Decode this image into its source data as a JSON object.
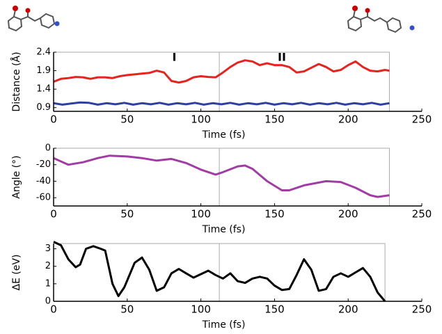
{
  "chart_data": [
    {
      "type": "line",
      "ylabel": "Distance (Å)",
      "xlabel": "Time (fs)",
      "xlim": [
        0,
        250
      ],
      "xticks": [
        0,
        50,
        100,
        150,
        200,
        250
      ],
      "ylim": [
        0.8,
        2.4
      ],
      "yticks": [
        0.9,
        1.4,
        1.9,
        2.4
      ],
      "vline": 112.5,
      "annotations": [
        {
          "text": "I",
          "x": 82,
          "y": 2.25
        },
        {
          "text": "II",
          "x": 155,
          "y": 2.25
        }
      ],
      "series": [
        {
          "color": "#e8231e",
          "x": [
            0,
            5,
            10,
            15,
            20,
            25,
            30,
            35,
            40,
            45,
            50,
            55,
            60,
            65,
            70,
            75,
            80,
            85,
            90,
            95,
            100,
            105,
            110,
            115,
            120,
            125,
            130,
            135,
            140,
            145,
            150,
            155,
            160,
            165,
            170,
            175,
            180,
            185,
            190,
            195,
            200,
            205,
            210,
            215,
            220,
            225,
            228
          ],
          "values": [
            1.6,
            1.68,
            1.7,
            1.73,
            1.72,
            1.68,
            1.72,
            1.72,
            1.7,
            1.75,
            1.78,
            1.8,
            1.82,
            1.84,
            1.9,
            1.85,
            1.62,
            1.58,
            1.62,
            1.72,
            1.75,
            1.73,
            1.72,
            1.85,
            2.0,
            2.12,
            2.18,
            2.15,
            2.05,
            2.1,
            2.05,
            2.05,
            2.0,
            1.85,
            1.88,
            1.98,
            2.08,
            2.0,
            1.88,
            1.92,
            2.05,
            2.15,
            2.0,
            1.9,
            1.88,
            1.92,
            1.9
          ]
        },
        {
          "color": "#2d3fa0",
          "x": [
            0,
            6,
            12,
            18,
            24,
            30,
            36,
            42,
            48,
            54,
            60,
            66,
            72,
            78,
            84,
            90,
            96,
            102,
            108,
            114,
            120,
            126,
            132,
            138,
            144,
            150,
            156,
            162,
            168,
            174,
            180,
            186,
            192,
            198,
            204,
            210,
            216,
            222,
            228
          ],
          "values": [
            1.02,
            0.98,
            1.01,
            1.04,
            1.03,
            0.98,
            1.02,
            0.99,
            1.03,
            0.98,
            1.02,
            0.99,
            1.03,
            0.98,
            1.02,
            0.99,
            1.03,
            0.98,
            1.02,
            0.99,
            1.03,
            0.98,
            1.02,
            0.99,
            1.03,
            0.98,
            1.02,
            0.99,
            1.03,
            0.98,
            1.02,
            0.99,
            1.03,
            0.98,
            1.02,
            0.99,
            1.03,
            0.98,
            1.02
          ]
        }
      ]
    },
    {
      "type": "line",
      "ylabel": "Angle (°)",
      "xlabel": "Time (fs)",
      "xlim": [
        0,
        250
      ],
      "xticks": [
        0,
        50,
        100,
        150,
        200,
        250
      ],
      "ylim": [
        -70,
        0
      ],
      "yticks": [
        0,
        -20,
        -40,
        -60
      ],
      "vline": 112.5,
      "series": [
        {
          "color": "#a23ca5",
          "x": [
            0,
            10,
            20,
            30,
            38,
            50,
            60,
            70,
            80,
            90,
            100,
            110,
            115,
            125,
            130,
            135,
            145,
            155,
            160,
            170,
            185,
            195,
            205,
            215,
            220,
            228
          ],
          "values": [
            -12,
            -20,
            -17,
            -12,
            -9,
            -10,
            -12,
            -15,
            -13,
            -18,
            -26,
            -32,
            -29,
            -22,
            -21,
            -25,
            -40,
            -51,
            -51,
            -45,
            -40,
            -41,
            -48,
            -57,
            -59,
            -57
          ]
        }
      ]
    },
    {
      "type": "line",
      "ylabel": "ΔE (eV)",
      "xlabel": "Time (fs)",
      "xlim": [
        0,
        250
      ],
      "xticks": [
        0,
        50,
        100,
        150,
        200,
        250
      ],
      "ylim": [
        0,
        3.3
      ],
      "yticks": [
        0,
        1,
        2,
        3
      ],
      "vline": 112.5,
      "series": [
        {
          "color": "#000000",
          "x": [
            0,
            5,
            10,
            15,
            18,
            22,
            27,
            32,
            35,
            40,
            44,
            48,
            55,
            60,
            65,
            70,
            75,
            80,
            85,
            90,
            95,
            100,
            105,
            110,
            115,
            120,
            125,
            130,
            135,
            140,
            145,
            150,
            155,
            160,
            165,
            170,
            175,
            180,
            185,
            190,
            195,
            200,
            205,
            210,
            215,
            220,
            225
          ],
          "values": [
            3.4,
            3.2,
            2.4,
            1.95,
            2.1,
            3.0,
            3.15,
            3.0,
            2.9,
            1.0,
            0.3,
            0.8,
            2.2,
            2.5,
            1.8,
            0.6,
            0.8,
            1.6,
            1.85,
            1.6,
            1.35,
            1.55,
            1.75,
            1.5,
            1.3,
            1.6,
            1.15,
            1.05,
            1.3,
            1.4,
            1.3,
            0.9,
            0.65,
            0.7,
            1.5,
            2.4,
            1.8,
            0.6,
            0.7,
            1.4,
            1.6,
            1.4,
            1.65,
            1.9,
            1.4,
            0.5,
            0
          ]
        }
      ]
    }
  ]
}
